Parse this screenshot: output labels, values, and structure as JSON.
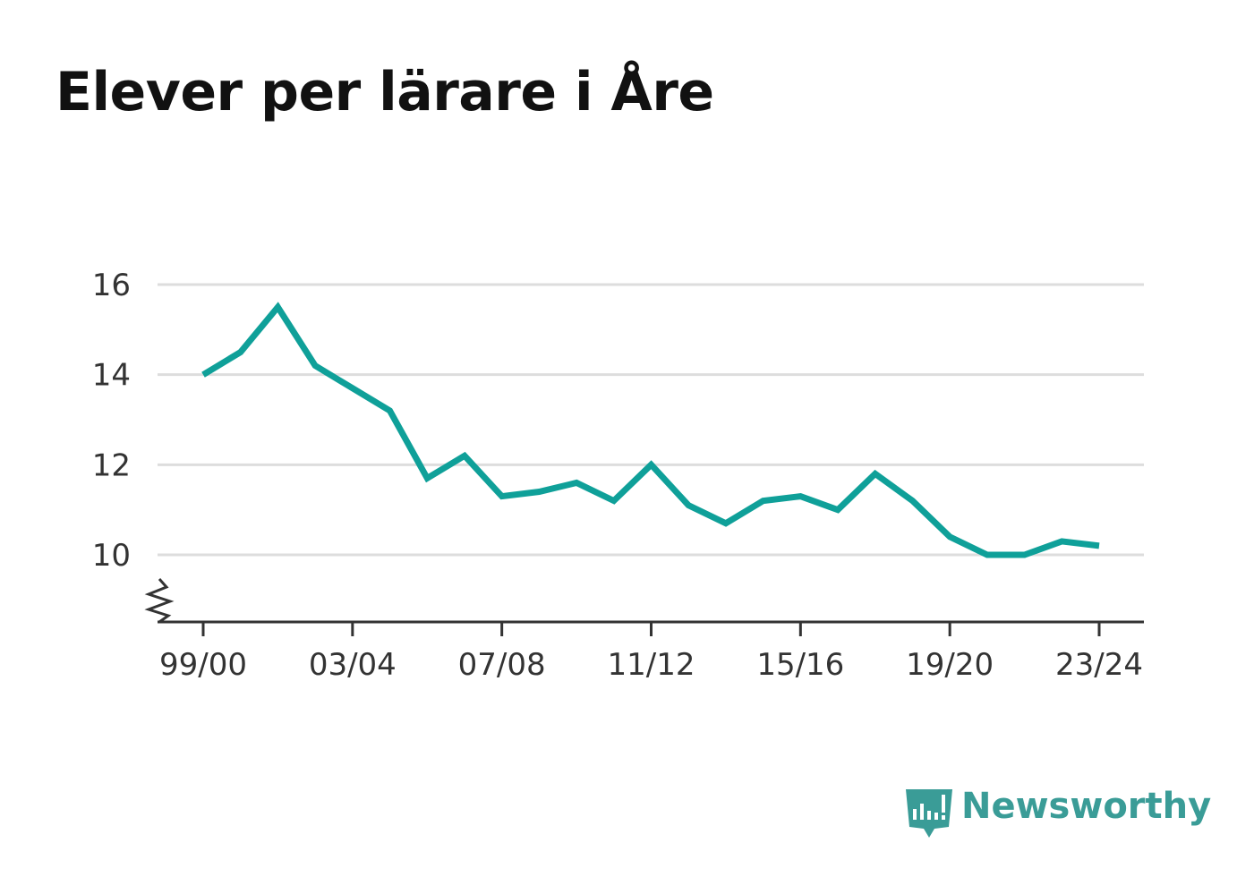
{
  "title": "Elever per lärare i Åre",
  "brand": {
    "name": "Newsworthy",
    "color": "#3a9c97",
    "icon": "bar-chart-speech-bubble-icon"
  },
  "colors": {
    "line": "#0fa099",
    "grid": "#dddddd",
    "axis": "#333333"
  },
  "chart_data": {
    "type": "line",
    "title": "Elever per lärare i Åre",
    "xlabel": "",
    "ylabel": "",
    "categories": [
      "99/00",
      "00/01",
      "01/02",
      "02/03",
      "03/04",
      "04/05",
      "05/06",
      "06/07",
      "07/08",
      "08/09",
      "09/10",
      "10/11",
      "11/12",
      "12/13",
      "13/14",
      "14/15",
      "15/16",
      "16/17",
      "17/18",
      "18/19",
      "19/20",
      "20/21",
      "21/22",
      "22/23",
      "23/24"
    ],
    "x_tick_labels": [
      "99/00",
      "03/04",
      "07/08",
      "11/12",
      "15/16",
      "19/20",
      "23/24"
    ],
    "series": [
      {
        "values": [
          14.0,
          14.5,
          15.5,
          14.2,
          13.7,
          13.2,
          11.7,
          12.2,
          11.3,
          11.4,
          11.6,
          11.2,
          12.0,
          11.1,
          10.7,
          11.2,
          11.3,
          11.0,
          11.8,
          11.2,
          10.4,
          10.0,
          10.0,
          10.3,
          10.2
        ]
      }
    ],
    "y_ticks": [
      10,
      12,
      14,
      16
    ],
    "ylim": [
      8.5,
      16
    ],
    "y_axis_break": true,
    "grid": true,
    "legend": "none"
  }
}
